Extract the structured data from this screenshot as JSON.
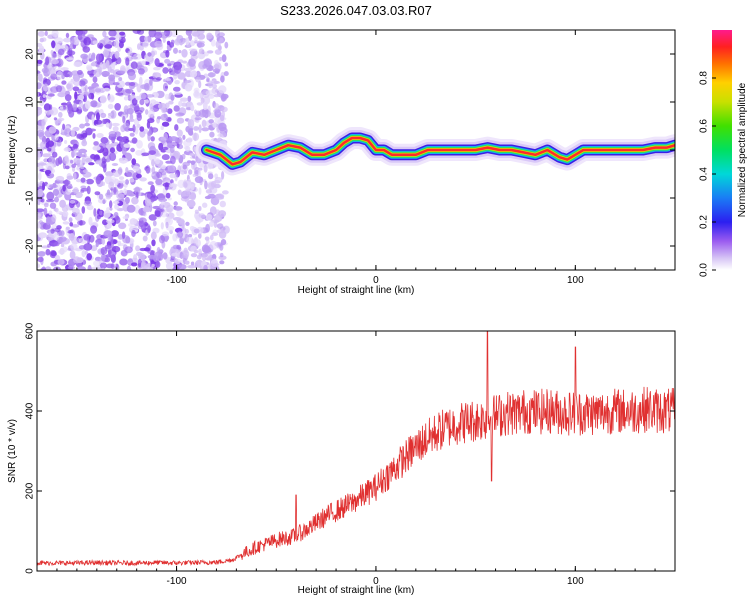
{
  "title": "S233.2026.047.03.03.R07",
  "colors": {
    "signal": "#e03030",
    "spectral_low": "#8a2be2",
    "axis": "#000000"
  },
  "chart_data": [
    {
      "type": "heatmap",
      "name": "spectrogram",
      "xlabel": "Height of straight line (km)",
      "ylabel": "Frequency (Hz)",
      "xlim": [
        -170,
        150
      ],
      "ylim": [
        -25,
        25
      ],
      "x_ticks": [
        -100,
        0,
        100
      ],
      "y_ticks": [
        -20,
        -10,
        0,
        10,
        20
      ],
      "noise_region_x": [
        -170,
        -75
      ],
      "signal_track": {
        "x": [
          -85,
          -78,
          -72,
          -68,
          -62,
          -56,
          -50,
          -44,
          -38,
          -32,
          -26,
          -20,
          -16,
          -12,
          -8,
          -4,
          0,
          4,
          8,
          14,
          20,
          26,
          34,
          42,
          50,
          56,
          62,
          68,
          74,
          80,
          86,
          92,
          96,
          100,
          104,
          110,
          116,
          122,
          128,
          134,
          140,
          146,
          150
        ],
        "y": [
          0,
          -1,
          -3,
          -2.5,
          -0.5,
          -1,
          0,
          1,
          0.5,
          -1,
          -1,
          0,
          1.5,
          2.5,
          2.5,
          2,
          0,
          0,
          -1,
          -1,
          -1,
          0,
          0,
          0,
          0,
          0.5,
          0,
          0,
          -0.5,
          -1,
          0,
          -1.5,
          -2,
          -1,
          0,
          0,
          0,
          0,
          0,
          0,
          0.5,
          0.5,
          1
        ]
      },
      "colorbar": {
        "label": "Normalized spectral amplitude",
        "range": [
          0,
          1
        ],
        "ticks": [
          "0.0",
          "0.2",
          "0.4",
          "0.6",
          "0.8"
        ]
      }
    },
    {
      "type": "line",
      "name": "snr",
      "xlabel": "Height of straight line (km)",
      "ylabel": "SNR (10 * v/v)",
      "xlim": [
        -170,
        150
      ],
      "ylim": [
        0,
        600
      ],
      "x_ticks": [
        -100,
        0,
        100
      ],
      "y_ticks": [
        0,
        200,
        400,
        600
      ],
      "series": [
        {
          "name": "SNR",
          "x": [
            -170,
            -160,
            -150,
            -140,
            -130,
            -120,
            -110,
            -100,
            -90,
            -80,
            -72,
            -66,
            -60,
            -54,
            -48,
            -42,
            -36,
            -30,
            -24,
            -18,
            -12,
            -6,
            0,
            6,
            12,
            18,
            24,
            30,
            36,
            42,
            48,
            54,
            58,
            62,
            66,
            70,
            76,
            82,
            88,
            94,
            100,
            106,
            112,
            118,
            124,
            130,
            136,
            142,
            150
          ],
          "values": [
            20,
            20,
            20,
            21,
            20,
            20,
            21,
            20,
            21,
            22,
            28,
            45,
            60,
            70,
            80,
            85,
            100,
            120,
            140,
            155,
            170,
            190,
            210,
            240,
            270,
            300,
            325,
            345,
            360,
            370,
            375,
            380,
            385,
            390,
            395,
            395,
            400,
            398,
            400,
            395,
            395,
            395,
            395,
            400,
            400,
            400,
            405,
            400,
            400
          ]
        }
      ],
      "spikes": [
        {
          "x": -40,
          "value": 190
        },
        {
          "x": 56,
          "value": 600
        },
        {
          "x": 58,
          "value": 225
        },
        {
          "x": 100,
          "value": 560
        }
      ]
    }
  ]
}
